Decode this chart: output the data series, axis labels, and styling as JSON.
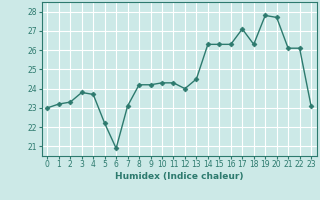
{
  "x": [
    0,
    1,
    2,
    3,
    4,
    5,
    6,
    7,
    8,
    9,
    10,
    11,
    12,
    13,
    14,
    15,
    16,
    17,
    18,
    19,
    20,
    21,
    22,
    23
  ],
  "y": [
    23.0,
    23.2,
    23.3,
    23.8,
    23.7,
    22.2,
    20.9,
    23.1,
    24.2,
    24.2,
    24.3,
    24.3,
    24.0,
    24.5,
    26.3,
    26.3,
    26.3,
    27.1,
    26.3,
    27.8,
    27.7,
    26.1,
    26.1,
    23.1
  ],
  "line_color": "#2d7a6e",
  "marker": "D",
  "marker_size": 2.5,
  "bg_color": "#cce9e7",
  "grid_color": "#ffffff",
  "tick_color": "#2d7a6e",
  "label_color": "#2d7a6e",
  "xlabel": "Humidex (Indice chaleur)",
  "ylim": [
    20.5,
    28.5
  ],
  "yticks": [
    21,
    22,
    23,
    24,
    25,
    26,
    27,
    28
  ],
  "xticks": [
    0,
    1,
    2,
    3,
    4,
    5,
    6,
    7,
    8,
    9,
    10,
    11,
    12,
    13,
    14,
    15,
    16,
    17,
    18,
    19,
    20,
    21,
    22,
    23
  ],
  "xlabel_fontsize": 6.5,
  "tick_fontsize": 5.5,
  "linewidth": 1.0
}
